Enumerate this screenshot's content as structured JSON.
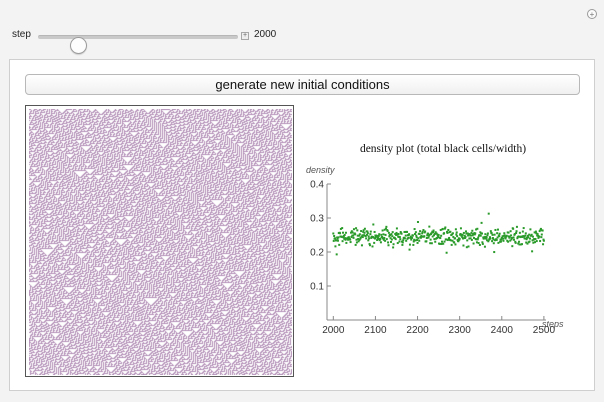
{
  "controls": {
    "step_label": "step",
    "step_value": "2000",
    "slider_fraction": 0.2,
    "reset_glyph": "+",
    "expand_glyph": "+"
  },
  "button": {
    "label": "generate new initial conditions"
  },
  "automaton": {
    "cell_color": "#b490b8",
    "background": "#ffffff"
  },
  "chart_data": {
    "type": "scatter",
    "title": "density plot (total black cells/width)",
    "xlabel": "steps",
    "ylabel": "density",
    "xlim": [
      1985,
      2505
    ],
    "ylim": [
      0,
      0.4
    ],
    "xticks": [
      2000,
      2100,
      2200,
      2300,
      2400,
      2500
    ],
    "yticks": [
      0.1,
      0.2,
      0.3,
      0.4
    ],
    "point_color": "#2a9a2a",
    "series": [
      {
        "mean": 0.245,
        "spread": 0.022,
        "x_start": 2000,
        "x_end": 2500
      }
    ]
  }
}
